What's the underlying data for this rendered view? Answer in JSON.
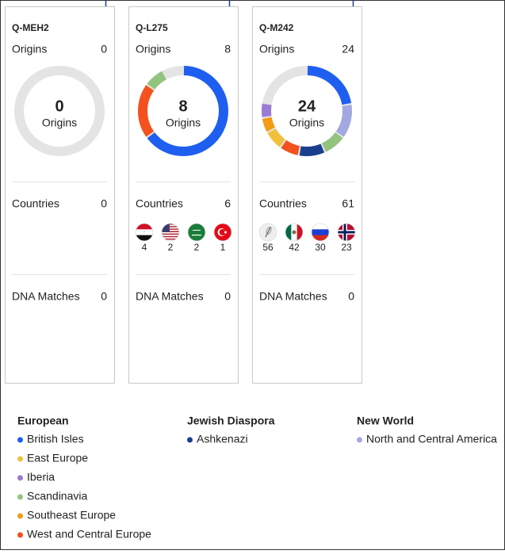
{
  "cards": [
    {
      "id": "Q-MEH2",
      "origins_label": "Origins",
      "origins": 0,
      "segments": [],
      "countries_label": "Countries",
      "countries": 0,
      "flag_counts": [],
      "dna_label": "DNA Matches",
      "dna_matches": 0
    },
    {
      "id": "Q-L275",
      "origins_label": "Origins",
      "origins": 8,
      "segments": [
        {
          "value": 5.2,
          "color": "#1f5ff0"
        },
        {
          "value": 1.6,
          "color": "#f4511e"
        },
        {
          "value": 0.6,
          "color": "#93c47d"
        }
      ],
      "countries_label": "Countries",
      "countries": 6,
      "flag_counts": [
        4,
        2,
        2,
        1
      ],
      "dna_label": "DNA Matches",
      "dna_matches": 0
    },
    {
      "id": "Q-M242",
      "origins_label": "Origins",
      "origins": 24,
      "segments": [
        {
          "value": 5.4,
          "color": "#1f5ff0"
        },
        {
          "value": 3,
          "color": "#a3a8e0"
        },
        {
          "value": 2,
          "color": "#93c47d"
        },
        {
          "value": 2.3,
          "color": "#1a3f8f"
        },
        {
          "value": 1.7,
          "color": "#f4511e"
        },
        {
          "value": 1.7,
          "color": "#f0c23c"
        },
        {
          "value": 1.3,
          "color": "#f39c12"
        },
        {
          "value": 1.3,
          "color": "#9b7bd6"
        }
      ],
      "countries_label": "Countries",
      "countries": 61,
      "flag_counts": [
        56,
        42,
        30,
        23
      ],
      "dna_label": "DNA Matches",
      "dna_matches": 0
    }
  ],
  "legend": [
    {
      "title": "European",
      "items": [
        {
          "name": "British Isles",
          "color": "#1f5ff0"
        },
        {
          "name": "East Europe",
          "color": "#f0c23c"
        },
        {
          "name": "Iberia",
          "color": "#9b7bd6"
        },
        {
          "name": "Scandinavia",
          "color": "#93c47d"
        },
        {
          "name": "Southeast Europe",
          "color": "#f39c12"
        },
        {
          "name": "West and Central Europe",
          "color": "#f4511e"
        }
      ]
    },
    {
      "title": "Jewish Diaspora",
      "items": [
        {
          "name": "Ashkenazi",
          "color": "#1a3f8f"
        }
      ]
    },
    {
      "title": "New World",
      "items": [
        {
          "name": "North and Central America",
          "color": "#a3a8e0"
        }
      ]
    }
  ]
}
